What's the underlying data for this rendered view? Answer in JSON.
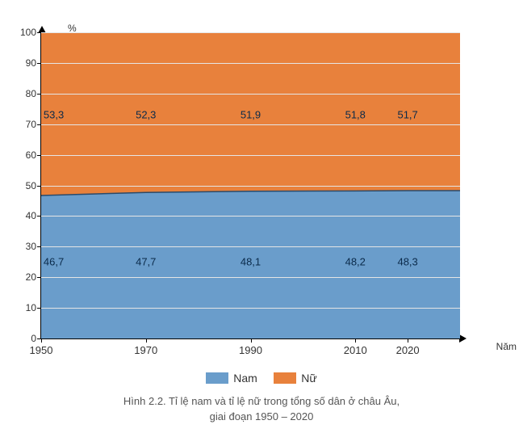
{
  "chart": {
    "type": "stacked-area",
    "y_axis_title": "%",
    "x_axis_title": "Năm",
    "ylim": [
      0,
      100
    ],
    "ytick_step": 10,
    "yticks": [
      0,
      10,
      20,
      30,
      40,
      50,
      60,
      70,
      80,
      90,
      100
    ],
    "categories": [
      "1950",
      "1970",
      "1990",
      "2010",
      "2020"
    ],
    "x_positions_pct": [
      0,
      25,
      50,
      75,
      87.5
    ],
    "x_plot_end_pct": 100,
    "series": [
      {
        "name": "Nam",
        "color": "#6a9dcb",
        "values": [
          46.7,
          47.7,
          48.1,
          48.2,
          48.3
        ],
        "label_y_pct": 25
      },
      {
        "name": "Nữ",
        "color": "#e8813c",
        "values": [
          53.3,
          52.3,
          51.9,
          51.8,
          51.7
        ],
        "label_y_pct": 73
      }
    ],
    "background_color": "#ffffff",
    "grid_color": "#e5e5e5",
    "axis_color": "#000000",
    "label_fontsize": 13,
    "tick_fontsize": 12,
    "boundary_line_color": "#2a4a6a"
  },
  "legend": {
    "items": [
      {
        "label": "Nam",
        "color": "#6a9dcb"
      },
      {
        "label": "Nữ",
        "color": "#e8813c"
      }
    ]
  },
  "caption": {
    "line1": "Hình 2.2. Tỉ lệ nam và tỉ lệ nữ trong tổng số dân ở châu Âu,",
    "line2": "giai đoạn 1950 – 2020"
  }
}
